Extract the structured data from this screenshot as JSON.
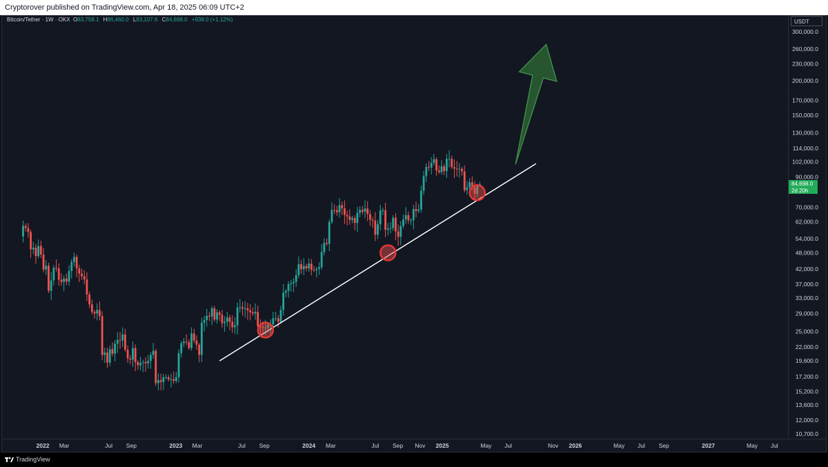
{
  "header": {
    "published": "Cryptorover published on TradingView.com, Apr 18, 2025 06:09 UTC+2"
  },
  "legend": {
    "symbol": "Bitcoin/Tether · 1W · OKX",
    "o_label": "O",
    "o": "83,758.1",
    "h_label": "H",
    "h": "86,460.0",
    "l_label": "L",
    "l": "83,107.6",
    "c_label": "C",
    "c": "84,698.0",
    "change": "+938.0 (+1.12%)"
  },
  "price_axis": {
    "currency": "USDT",
    "current_price": "84,698.0",
    "countdown": "2d 20h"
  },
  "footer": {
    "brand": "TradingView"
  },
  "colors": {
    "up": "#26a69a",
    "down": "#ef5350",
    "background": "#131722",
    "trendline": "#ffffff",
    "arrow": "#2e6b35",
    "price_tag": "#22ab59"
  },
  "chart_data": {
    "type": "candlestick",
    "scale": "log",
    "interval": "1W",
    "x_range": [
      "2021-11-08",
      "2027-08-16"
    ],
    "y_range": [
      10000,
      330000
    ],
    "y_ticks": [
      300000,
      260000,
      230000,
      200000,
      170000,
      150000,
      130000,
      114000,
      102000,
      90000,
      70000,
      62000,
      54000,
      48000,
      42000,
      37000,
      33000,
      29000,
      25000,
      22000,
      19600,
      17200,
      15200,
      13600,
      12000,
      10700
    ],
    "y_tick_labels": [
      "300,000.0",
      "260,000.0",
      "230,000.0",
      "200,000.0",
      "170,000.0",
      "150,000.0",
      "130,000.0",
      "114,000.0",
      "102,000.0",
      "90,000.0",
      "70,000.0",
      "62,000.0",
      "54,000.0",
      "48,000.0",
      "42,000.0",
      "37,000.0",
      "33,000.0",
      "29,000.0",
      "25,000.0",
      "22,000.0",
      "19,600.0",
      "17,200.0",
      "15,200.0",
      "13,600.0",
      "12,000.0",
      "10,700.0"
    ],
    "x_ticks": [
      {
        "date": "2022-01-01",
        "label": "2022",
        "bold": true
      },
      {
        "date": "2022-03-01",
        "label": "Mar"
      },
      {
        "date": "2022-07-01",
        "label": "Jul"
      },
      {
        "date": "2022-09-01",
        "label": "Sep"
      },
      {
        "date": "2023-01-01",
        "label": "2023",
        "bold": true
      },
      {
        "date": "2023-03-01",
        "label": "Mar"
      },
      {
        "date": "2023-07-01",
        "label": "Jul"
      },
      {
        "date": "2023-09-01",
        "label": "Sep"
      },
      {
        "date": "2024-01-01",
        "label": "2024",
        "bold": true
      },
      {
        "date": "2024-03-01",
        "label": "Mar"
      },
      {
        "date": "2024-07-01",
        "label": "Jul"
      },
      {
        "date": "2024-09-01",
        "label": "Sep"
      },
      {
        "date": "2024-11-01",
        "label": "Nov"
      },
      {
        "date": "2025-01-01",
        "label": "2025",
        "bold": true
      },
      {
        "date": "2025-05-01",
        "label": "May"
      },
      {
        "date": "2025-07-01",
        "label": "Jul"
      },
      {
        "date": "2025-11-01",
        "label": "Nov"
      },
      {
        "date": "2026-01-01",
        "label": "2026",
        "bold": true
      },
      {
        "date": "2026-05-01",
        "label": "May"
      },
      {
        "date": "2026-07-01",
        "label": "Jul"
      },
      {
        "date": "2026-09-01",
        "label": "Sep"
      },
      {
        "date": "2027-01-01",
        "label": "2027",
        "bold": true
      },
      {
        "date": "2027-05-01",
        "label": "May"
      },
      {
        "date": "2027-07-01",
        "label": "Jul"
      }
    ],
    "closes": [
      {
        "date": "2021-11-08",
        "close": 60000
      },
      {
        "date": "2021-11-15",
        "close": 59000
      },
      {
        "date": "2021-11-22",
        "close": 57000
      },
      {
        "date": "2021-11-29",
        "close": 49400
      },
      {
        "date": "2021-12-06",
        "close": 50100
      },
      {
        "date": "2021-12-13",
        "close": 46700
      },
      {
        "date": "2021-12-20",
        "close": 50800
      },
      {
        "date": "2021-12-27",
        "close": 47300
      },
      {
        "date": "2022-01-03",
        "close": 41800
      },
      {
        "date": "2022-01-10",
        "close": 43100
      },
      {
        "date": "2022-01-17",
        "close": 35000
      },
      {
        "date": "2022-01-24",
        "close": 38200
      },
      {
        "date": "2022-01-31",
        "close": 42400
      },
      {
        "date": "2022-02-07",
        "close": 42200
      },
      {
        "date": "2022-02-14",
        "close": 38400
      },
      {
        "date": "2022-02-21",
        "close": 37700
      },
      {
        "date": "2022-02-28",
        "close": 38800
      },
      {
        "date": "2022-03-07",
        "close": 37800
      },
      {
        "date": "2022-03-14",
        "close": 41300
      },
      {
        "date": "2022-03-21",
        "close": 44500
      },
      {
        "date": "2022-03-28",
        "close": 46400
      },
      {
        "date": "2022-04-04",
        "close": 42200
      },
      {
        "date": "2022-04-11",
        "close": 40400
      },
      {
        "date": "2022-04-18",
        "close": 39500
      },
      {
        "date": "2022-04-25",
        "close": 38500
      },
      {
        "date": "2022-05-02",
        "close": 34000
      },
      {
        "date": "2022-05-09",
        "close": 31300
      },
      {
        "date": "2022-05-16",
        "close": 29400
      },
      {
        "date": "2022-05-23",
        "close": 29000
      },
      {
        "date": "2022-05-30",
        "close": 29900
      },
      {
        "date": "2022-06-06",
        "close": 28400
      },
      {
        "date": "2022-06-13",
        "close": 20600
      },
      {
        "date": "2022-06-20",
        "close": 21000
      },
      {
        "date": "2022-06-27",
        "close": 19300
      },
      {
        "date": "2022-07-04",
        "close": 21600
      },
      {
        "date": "2022-07-11",
        "close": 20800
      },
      {
        "date": "2022-07-18",
        "close": 22600
      },
      {
        "date": "2022-07-25",
        "close": 23300
      },
      {
        "date": "2022-08-01",
        "close": 23200
      },
      {
        "date": "2022-08-08",
        "close": 24400
      },
      {
        "date": "2022-08-15",
        "close": 21500
      },
      {
        "date": "2022-08-22",
        "close": 20000
      },
      {
        "date": "2022-08-29",
        "close": 19800
      },
      {
        "date": "2022-09-05",
        "close": 21800
      },
      {
        "date": "2022-09-12",
        "close": 19400
      },
      {
        "date": "2022-09-19",
        "close": 18900
      },
      {
        "date": "2022-09-26",
        "close": 19300
      },
      {
        "date": "2022-10-03",
        "close": 19400
      },
      {
        "date": "2022-10-10",
        "close": 19200
      },
      {
        "date": "2022-10-17",
        "close": 19600
      },
      {
        "date": "2022-10-24",
        "close": 20600
      },
      {
        "date": "2022-10-31",
        "close": 21300
      },
      {
        "date": "2022-11-07",
        "close": 16300
      },
      {
        "date": "2022-11-14",
        "close": 16700
      },
      {
        "date": "2022-11-21",
        "close": 16450
      },
      {
        "date": "2022-11-28",
        "close": 17100
      },
      {
        "date": "2022-12-05",
        "close": 17100
      },
      {
        "date": "2022-12-12",
        "close": 16800
      },
      {
        "date": "2022-12-19",
        "close": 16840
      },
      {
        "date": "2022-12-26",
        "close": 16600
      },
      {
        "date": "2023-01-02",
        "close": 17130
      },
      {
        "date": "2023-01-09",
        "close": 20900
      },
      {
        "date": "2023-01-16",
        "close": 22700
      },
      {
        "date": "2023-01-23",
        "close": 23000
      },
      {
        "date": "2023-01-30",
        "close": 22900
      },
      {
        "date": "2023-02-06",
        "close": 21800
      },
      {
        "date": "2023-02-13",
        "close": 24600
      },
      {
        "date": "2023-02-20",
        "close": 23200
      },
      {
        "date": "2023-02-27",
        "close": 22400
      },
      {
        "date": "2023-03-06",
        "close": 20600
      },
      {
        "date": "2023-03-13",
        "close": 26900
      },
      {
        "date": "2023-03-20",
        "close": 27500
      },
      {
        "date": "2023-03-27",
        "close": 28500
      },
      {
        "date": "2023-04-03",
        "close": 28300
      },
      {
        "date": "2023-04-10",
        "close": 30300
      },
      {
        "date": "2023-04-17",
        "close": 27600
      },
      {
        "date": "2023-04-24",
        "close": 29300
      },
      {
        "date": "2023-05-01",
        "close": 28700
      },
      {
        "date": "2023-05-08",
        "close": 26800
      },
      {
        "date": "2023-05-15",
        "close": 27100
      },
      {
        "date": "2023-05-22",
        "close": 28100
      },
      {
        "date": "2023-05-29",
        "close": 27100
      },
      {
        "date": "2023-06-05",
        "close": 25900
      },
      {
        "date": "2023-06-12",
        "close": 26300
      },
      {
        "date": "2023-06-19",
        "close": 30500
      },
      {
        "date": "2023-06-26",
        "close": 30600
      },
      {
        "date": "2023-07-03",
        "close": 30200
      },
      {
        "date": "2023-07-10",
        "close": 30300
      },
      {
        "date": "2023-07-17",
        "close": 29800
      },
      {
        "date": "2023-07-24",
        "close": 29300
      },
      {
        "date": "2023-07-31",
        "close": 29000
      },
      {
        "date": "2023-08-07",
        "close": 29400
      },
      {
        "date": "2023-08-14",
        "close": 26100
      },
      {
        "date": "2023-08-21",
        "close": 26000
      },
      {
        "date": "2023-08-28",
        "close": 25800
      },
      {
        "date": "2023-09-04",
        "close": 25800
      },
      {
        "date": "2023-09-11",
        "close": 26500
      },
      {
        "date": "2023-09-18",
        "close": 26500
      },
      {
        "date": "2023-09-25",
        "close": 27900
      },
      {
        "date": "2023-10-02",
        "close": 27900
      },
      {
        "date": "2023-10-09",
        "close": 27100
      },
      {
        "date": "2023-10-16",
        "close": 29900
      },
      {
        "date": "2023-10-23",
        "close": 34500
      },
      {
        "date": "2023-10-30",
        "close": 35000
      },
      {
        "date": "2023-11-06",
        "close": 37000
      },
      {
        "date": "2023-11-13",
        "close": 37300
      },
      {
        "date": "2023-11-20",
        "close": 37700
      },
      {
        "date": "2023-11-27",
        "close": 39900
      },
      {
        "date": "2023-12-04",
        "close": 43700
      },
      {
        "date": "2023-12-11",
        "close": 41900
      },
      {
        "date": "2023-12-18",
        "close": 43000
      },
      {
        "date": "2023-12-25",
        "close": 42200
      },
      {
        "date": "2024-01-01",
        "close": 43900
      },
      {
        "date": "2024-01-08",
        "close": 41700
      },
      {
        "date": "2024-01-15",
        "close": 41600
      },
      {
        "date": "2024-01-22",
        "close": 42000
      },
      {
        "date": "2024-01-29",
        "close": 42600
      },
      {
        "date": "2024-02-05",
        "close": 48300
      },
      {
        "date": "2024-02-12",
        "close": 52100
      },
      {
        "date": "2024-02-19",
        "close": 51700
      },
      {
        "date": "2024-02-26",
        "close": 62000
      },
      {
        "date": "2024-03-04",
        "close": 68500
      },
      {
        "date": "2024-03-11",
        "close": 68400
      },
      {
        "date": "2024-03-18",
        "close": 67200
      },
      {
        "date": "2024-03-25",
        "close": 71300
      },
      {
        "date": "2024-04-01",
        "close": 69400
      },
      {
        "date": "2024-04-08",
        "close": 65700
      },
      {
        "date": "2024-04-15",
        "close": 64900
      },
      {
        "date": "2024-04-22",
        "close": 63100
      },
      {
        "date": "2024-04-29",
        "close": 64000
      },
      {
        "date": "2024-05-06",
        "close": 61500
      },
      {
        "date": "2024-05-13",
        "close": 66900
      },
      {
        "date": "2024-05-20",
        "close": 68500
      },
      {
        "date": "2024-05-27",
        "close": 67500
      },
      {
        "date": "2024-06-03",
        "close": 69300
      },
      {
        "date": "2024-06-10",
        "close": 66200
      },
      {
        "date": "2024-06-17",
        "close": 63200
      },
      {
        "date": "2024-06-24",
        "close": 62700
      },
      {
        "date": "2024-07-01",
        "close": 55800
      },
      {
        "date": "2024-07-08",
        "close": 60800
      },
      {
        "date": "2024-07-15",
        "close": 68200
      },
      {
        "date": "2024-07-22",
        "close": 68300
      },
      {
        "date": "2024-07-29",
        "close": 58100
      },
      {
        "date": "2024-08-05",
        "close": 58700
      },
      {
        "date": "2024-08-12",
        "close": 58900
      },
      {
        "date": "2024-08-19",
        "close": 64200
      },
      {
        "date": "2024-08-26",
        "close": 57300
      },
      {
        "date": "2024-09-02",
        "close": 54800
      },
      {
        "date": "2024-09-09",
        "close": 59900
      },
      {
        "date": "2024-09-16",
        "close": 63300
      },
      {
        "date": "2024-09-23",
        "close": 65600
      },
      {
        "date": "2024-09-30",
        "close": 62800
      },
      {
        "date": "2024-10-07",
        "close": 62900
      },
      {
        "date": "2024-10-14",
        "close": 69000
      },
      {
        "date": "2024-10-21",
        "close": 67900
      },
      {
        "date": "2024-10-28",
        "close": 68700
      },
      {
        "date": "2024-11-04",
        "close": 80300
      },
      {
        "date": "2024-11-11",
        "close": 90600
      },
      {
        "date": "2024-11-18",
        "close": 97900
      },
      {
        "date": "2024-11-25",
        "close": 97300
      },
      {
        "date": "2024-12-02",
        "close": 101100
      },
      {
        "date": "2024-12-09",
        "close": 104300
      },
      {
        "date": "2024-12-16",
        "close": 95100
      },
      {
        "date": "2024-12-23",
        "close": 93700
      },
      {
        "date": "2024-12-30",
        "close": 98300
      },
      {
        "date": "2025-01-06",
        "close": 94500
      },
      {
        "date": "2025-01-13",
        "close": 104500
      },
      {
        "date": "2025-01-20",
        "close": 104700
      },
      {
        "date": "2025-01-27",
        "close": 97700
      },
      {
        "date": "2025-02-03",
        "close": 96500
      },
      {
        "date": "2025-02-10",
        "close": 96100
      },
      {
        "date": "2025-02-17",
        "close": 96300
      },
      {
        "date": "2025-02-24",
        "close": 94200
      },
      {
        "date": "2025-03-03",
        "close": 80700
      },
      {
        "date": "2025-03-10",
        "close": 82600
      },
      {
        "date": "2025-03-17",
        "close": 86100
      },
      {
        "date": "2025-03-24",
        "close": 82400
      },
      {
        "date": "2025-03-31",
        "close": 78400
      },
      {
        "date": "2025-04-07",
        "close": 83760
      },
      {
        "date": "2025-04-14",
        "close": 84698
      }
    ],
    "current_candle": {
      "open": 83758.1,
      "high": 86460.0,
      "low": 83107.6,
      "close": 84698.0
    },
    "trendline": {
      "start": {
        "date": "2023-05-01",
        "value": 19600
      },
      "end": {
        "date": "2025-09-15",
        "value": 100500
      }
    },
    "touch_points": [
      {
        "date": "2023-09-04",
        "value": 25300
      },
      {
        "date": "2024-08-05",
        "value": 48000
      },
      {
        "date": "2025-04-07",
        "value": 79000
      }
    ],
    "projection_arrow": {
      "from": {
        "date": "2025-07-21",
        "value": 100000
      },
      "to": {
        "date": "2025-10-13",
        "value": 270000
      }
    }
  }
}
